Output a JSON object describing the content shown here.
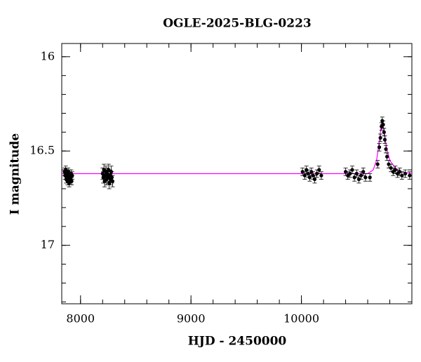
{
  "chart_data": {
    "type": "scatter",
    "title": "OGLE-2025-BLG-0223",
    "xlabel": "HJD - 2450000",
    "ylabel": "I magnitude",
    "xlim": [
      7830,
      11000
    ],
    "ylim": [
      15.93,
      17.31
    ],
    "y_inverted": true,
    "xticks": [
      8000,
      9000,
      10000
    ],
    "yticks": [
      16,
      16.5,
      17
    ],
    "xminorticks": [
      8000,
      8200,
      8400,
      8600,
      8800,
      9000,
      9200,
      9400,
      9600,
      9800,
      10000,
      10200,
      10400,
      10600,
      10800
    ],
    "yminorticks": [
      16,
      16.1,
      16.2,
      16.3,
      16.4,
      16.5,
      16.6,
      16.7,
      16.8,
      16.9,
      17,
      17.1,
      17.2,
      17.3
    ],
    "color": "#000000",
    "x": [
      7855,
      7860,
      7866,
      7870,
      7875,
      7880,
      7884,
      7888,
      7892,
      7897,
      7902,
      7906,
      7910,
      7915,
      7920,
      7925,
      8200,
      8206,
      8212,
      8218,
      8224,
      8230,
      8236,
      8242,
      8248,
      8254,
      8260,
      8266,
      8272,
      8278,
      8284,
      8290,
      10010,
      10030,
      10045,
      10060,
      10075,
      10090,
      10105,
      10120,
      10140,
      10160,
      10180,
      10400,
      10420,
      10440,
      10460,
      10480,
      10500,
      10520,
      10540,
      10560,
      10580,
      10620,
      10690,
      10705,
      10715,
      10725,
      10732,
      10740,
      10748,
      10755,
      10765,
      10775,
      10790,
      10810,
      10830,
      10850,
      10870,
      10890,
      10910,
      10940,
      10980
    ],
    "values": [
      16.61,
      16.63,
      16.6,
      16.65,
      16.62,
      16.64,
      16.66,
      16.61,
      16.63,
      16.67,
      16.62,
      16.65,
      16.64,
      16.62,
      16.66,
      16.63,
      16.62,
      16.64,
      16.6,
      16.66,
      16.63,
      16.61,
      16.65,
      16.62,
      16.64,
      16.6,
      16.67,
      16.63,
      16.65,
      16.61,
      16.64,
      16.66,
      16.61,
      16.63,
      16.6,
      16.62,
      16.64,
      16.61,
      16.63,
      16.65,
      16.62,
      16.6,
      16.63,
      16.61,
      16.63,
      16.62,
      16.6,
      16.64,
      16.62,
      16.65,
      16.63,
      16.61,
      16.64,
      16.64,
      16.57,
      16.48,
      16.43,
      16.37,
      16.34,
      16.36,
      16.4,
      16.44,
      16.49,
      16.53,
      16.57,
      16.59,
      16.61,
      16.6,
      16.62,
      16.61,
      16.63,
      16.62,
      16.63
    ],
    "errors": [
      0.02,
      0.02,
      0.02,
      0.02,
      0.02,
      0.02,
      0.02,
      0.02,
      0.02,
      0.02,
      0.02,
      0.02,
      0.02,
      0.02,
      0.02,
      0.02,
      0.03,
      0.03,
      0.03,
      0.03,
      0.03,
      0.03,
      0.03,
      0.03,
      0.03,
      0.03,
      0.03,
      0.03,
      0.03,
      0.03,
      0.03,
      0.03,
      0.02,
      0.02,
      0.02,
      0.02,
      0.02,
      0.02,
      0.02,
      0.02,
      0.02,
      0.02,
      0.02,
      0.02,
      0.02,
      0.02,
      0.02,
      0.02,
      0.02,
      0.02,
      0.02,
      0.02,
      0.02,
      0.02,
      0.02,
      0.02,
      0.02,
      0.02,
      0.02,
      0.02,
      0.02,
      0.02,
      0.02,
      0.02,
      0.02,
      0.02,
      0.02,
      0.02,
      0.02,
      0.02,
      0.02,
      0.02,
      0.02
    ],
    "model": {
      "color": "#ff00ff",
      "x": [
        7830,
        10600,
        10650,
        10680,
        10700,
        10720,
        10735,
        10750,
        10770,
        10800,
        10850,
        10900,
        11000
      ],
      "values": [
        16.62,
        16.62,
        16.6,
        16.55,
        16.47,
        16.38,
        16.35,
        16.4,
        16.48,
        16.55,
        16.59,
        16.61,
        16.62
      ]
    }
  }
}
